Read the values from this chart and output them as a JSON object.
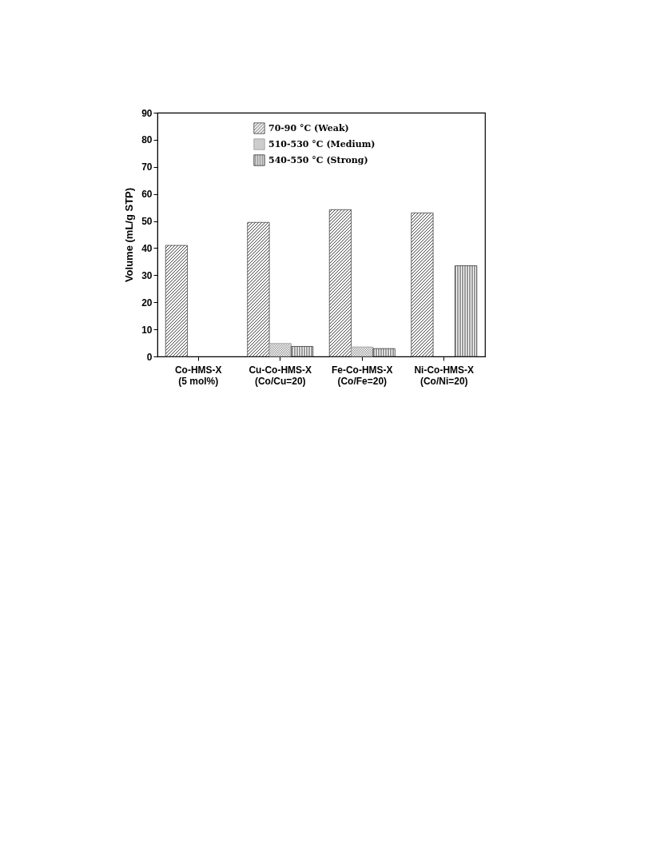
{
  "chart_data": {
    "type": "bar",
    "ylabel": "Volume (mL/g STP)",
    "categories": [
      "Co-HMS-X\n(5 mol%)",
      "Cu-Co-HMS-X\n(Co/Cu=20)",
      "Fe-Co-HMS-X\n(Co/Fe=20)",
      "Ni-Co-HMS-X\n(Co/Ni=20)"
    ],
    "series": [
      {
        "name": "70-90 °C (Weak)",
        "color": "#444444",
        "values": [
          41,
          49.5,
          54.2,
          53
        ]
      },
      {
        "name": "510-530 °C (Medium)",
        "color": "#999999",
        "values": [
          null,
          4.8,
          3.5,
          null
        ]
      },
      {
        "name": "540-550 °C (Strong)",
        "color": "#333333",
        "values": [
          null,
          3.7,
          2.9,
          33.5
        ]
      }
    ],
    "ylim": [
      0,
      90
    ],
    "yticks": [
      0,
      10,
      20,
      30,
      40,
      50,
      60,
      70,
      80,
      90
    ],
    "grid": false,
    "legend": "top"
  }
}
